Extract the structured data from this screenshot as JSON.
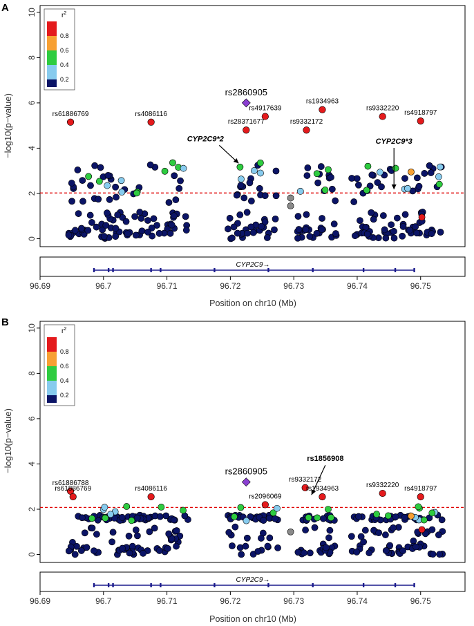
{
  "chart_data": [
    {
      "type": "scatter",
      "panel_label": "A",
      "xlabel": "Position on chr10 (Mb)",
      "ylabel": "−log10(p−value)",
      "xlim": [
        96.69,
        96.757
      ],
      "ylim": [
        -0.35,
        10.3
      ],
      "xticks": [
        "96.69",
        "96.7",
        "96.71",
        "96.72",
        "96.73",
        "96.74",
        "96.75"
      ],
      "xtick_values": [
        96.69,
        96.7,
        96.71,
        96.72,
        96.73,
        96.74,
        96.75
      ],
      "yticks": [
        "0",
        "2",
        "4",
        "6",
        "8",
        "10"
      ],
      "ytick_values": [
        0,
        2,
        4,
        6,
        8,
        10
      ],
      "threshold": 2.02,
      "gene": {
        "label": "CYP2C9→",
        "start": 96.6985,
        "end": 96.749,
        "exons": [
          96.6985,
          96.7008,
          96.7015,
          96.7075,
          96.709,
          96.7175,
          96.726,
          96.733,
          96.741,
          96.746,
          96.749
        ]
      },
      "legend": {
        "title": "r2",
        "labels": [
          "0.8",
          "0.6",
          "0.4",
          "0.2"
        ]
      },
      "lead": {
        "label": "rs2860905",
        "x": 96.7225,
        "y": 6.0
      },
      "annotations": [
        {
          "label": "rs61886769",
          "x": 96.6948,
          "y": 5.15
        },
        {
          "label": "rs28371677",
          "x": 96.7225,
          "y": 4.8
        },
        {
          "label": "rs4086116",
          "x": 96.7075,
          "y": 5.15
        },
        {
          "label": "rs4917639",
          "x": 96.7255,
          "y": 5.4
        },
        {
          "label": "rs1934963",
          "x": 96.7345,
          "y": 5.7
        },
        {
          "label": "rs9332172",
          "x": 96.732,
          "y": 4.8
        },
        {
          "label": "rs9332220",
          "x": 96.744,
          "y": 5.4
        },
        {
          "label": "rs4918797",
          "x": 96.75,
          "y": 5.2
        }
      ],
      "callouts": [
        {
          "label": "CYP2C9*2",
          "x": 96.7213,
          "y": 3.15
        },
        {
          "label": "CYP2C9*3",
          "x": 96.7458,
          "y": 2.0
        }
      ]
    },
    {
      "type": "scatter",
      "panel_label": "B",
      "xlabel": "Position on chr10 (Mb)",
      "ylabel": "−log10(p−value)",
      "xlim": [
        96.69,
        96.757
      ],
      "ylim": [
        -0.35,
        10.3
      ],
      "xticks": [
        "96.69",
        "96.7",
        "96.71",
        "96.72",
        "96.73",
        "96.74",
        "96.75"
      ],
      "xtick_values": [
        96.69,
        96.7,
        96.71,
        96.72,
        96.73,
        96.74,
        96.75
      ],
      "yticks": [
        "0",
        "2",
        "4",
        "6",
        "8",
        "10"
      ],
      "ytick_values": [
        0,
        2,
        4,
        6,
        8,
        10
      ],
      "threshold": 2.08,
      "gene": {
        "label": "CYP2C9→",
        "start": 96.6985,
        "end": 96.749,
        "exons": [
          96.6985,
          96.7008,
          96.7015,
          96.7075,
          96.709,
          96.7175,
          96.726,
          96.733,
          96.741,
          96.746,
          96.749
        ]
      },
      "legend": {
        "title": "r2",
        "labels": [
          "0.8",
          "0.6",
          "0.4",
          "0.2"
        ]
      },
      "lead": {
        "label": "rs2860905",
        "x": 96.7225,
        "y": 3.2
      },
      "annotations": [
        {
          "label": "rs61886788",
          "x": 96.6948,
          "y": 2.8
        },
        {
          "label": "rs61886769",
          "x": 96.6952,
          "y": 2.55
        },
        {
          "label": "rs4086116",
          "x": 96.7075,
          "y": 2.55
        },
        {
          "label": "rs2096069",
          "x": 96.7255,
          "y": 2.2
        },
        {
          "label": "rs9332172",
          "x": 96.7318,
          "y": 2.95
        },
        {
          "label": "rs1934963",
          "x": 96.7345,
          "y": 2.55
        },
        {
          "label": "rs9332220",
          "x": 96.744,
          "y": 2.7
        },
        {
          "label": "rs4918797",
          "x": 96.75,
          "y": 2.55
        }
      ],
      "callouts": [
        {
          "label": "rs1856908",
          "x": 96.7328,
          "y": 2.45
        }
      ]
    }
  ]
}
